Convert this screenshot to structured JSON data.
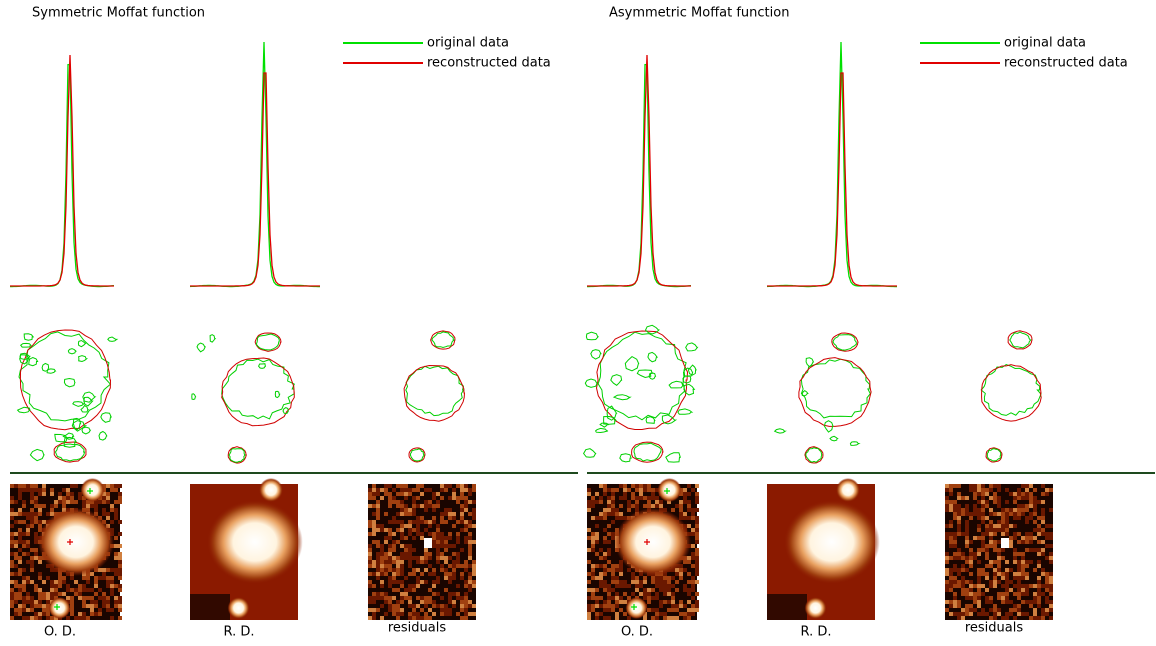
{
  "panels": [
    {
      "title": "Symmetric Moffat function",
      "legend": [
        "original data",
        "reconstructed data"
      ],
      "image_labels": [
        "O. D.",
        "R. D.",
        "residuals"
      ]
    },
    {
      "title": "Asymmetric Moffat function",
      "legend": [
        "original data",
        "reconstructed data"
      ],
      "image_labels": [
        "O. D.",
        "R. D.",
        "residuals"
      ]
    }
  ]
}
